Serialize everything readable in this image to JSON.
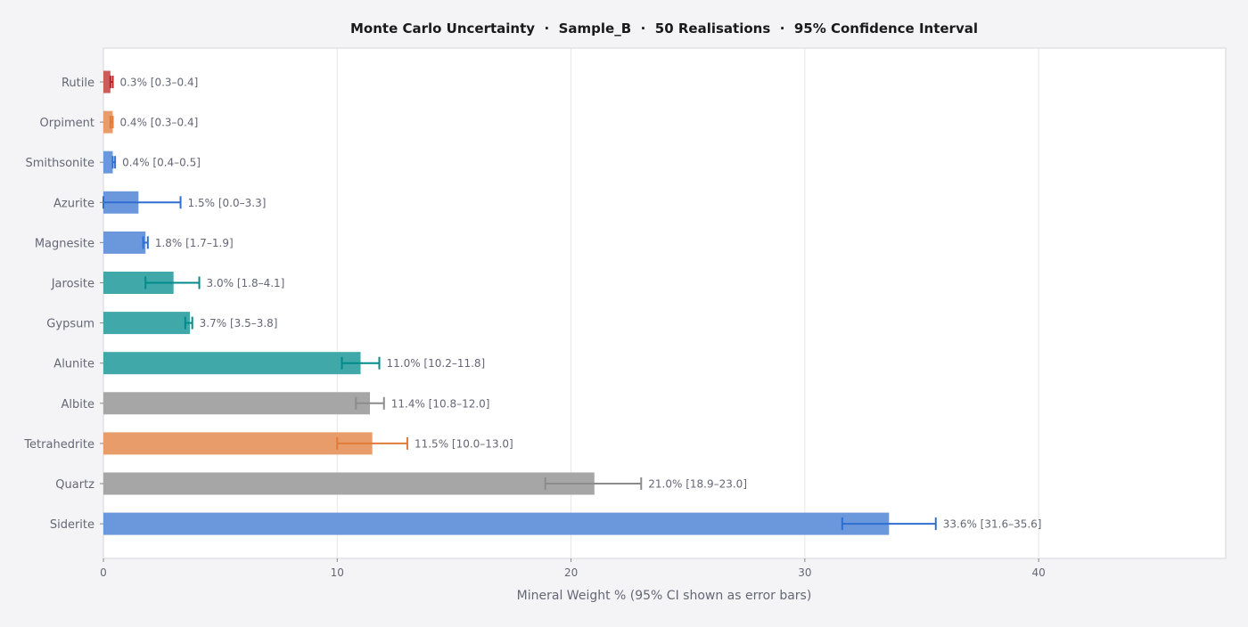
{
  "chart_data": {
    "type": "bar",
    "orientation": "horizontal",
    "title": "Monte Carlo Uncertainty  ·  Sample_B  ·  50 Realisations  ·  95% Confidence Interval",
    "xlabel": "Mineral Weight % (95% CI shown as error bars)",
    "ylabel": "",
    "xlim": [
      0,
      48
    ],
    "xticks": [
      0,
      10,
      20,
      30,
      40
    ],
    "grid": "vertical",
    "legend": "none",
    "series": [
      {
        "categories": [
          "Rutile",
          "Orpiment",
          "Smithsonite",
          "Azurite",
          "Magnesite",
          "Jarosite",
          "Gypsum",
          "Alunite",
          "Albite",
          "Tetrahedrite",
          "Quartz",
          "Siderite"
        ],
        "values": [
          0.3,
          0.4,
          0.4,
          1.5,
          1.8,
          3.0,
          3.7,
          11.0,
          11.4,
          11.5,
          21.0,
          33.6
        ],
        "ci_low": [
          0.3,
          0.3,
          0.4,
          0.0,
          1.7,
          1.8,
          3.5,
          10.2,
          10.8,
          10.0,
          18.9,
          31.6
        ],
        "ci_high": [
          0.4,
          0.4,
          0.5,
          3.3,
          1.9,
          4.1,
          3.8,
          11.8,
          12.0,
          13.0,
          23.0,
          35.6
        ],
        "labels": [
          "0.3%  [0.3–0.4]",
          "0.4%  [0.3–0.4]",
          "0.4%  [0.4–0.5]",
          "1.5%  [0.0–3.3]",
          "1.8%  [1.7–1.9]",
          "3.0%  [1.8–4.1]",
          "3.7%  [3.5–3.8]",
          "11.0%  [10.2–11.8]",
          "11.4%  [10.8–12.0]",
          "11.5%  [10.0–13.0]",
          "21.0%  [18.9–23.0]",
          "33.6%  [31.6–35.6]"
        ],
        "bar_colors": [
          "#cd5c5c",
          "#e89c6a",
          "#6b97dd",
          "#6b97dd",
          "#6b97dd",
          "#40a8a8",
          "#40a8a8",
          "#40a8a8",
          "#a6a6a6",
          "#e89c6a",
          "#a6a6a6",
          "#6b97dd"
        ],
        "error_colors": [
          "#b32424",
          "#e07b39",
          "#2f6fd1",
          "#2f6fd1",
          "#2f6fd1",
          "#008b8b",
          "#008b8b",
          "#008b8b",
          "#8c8c8c",
          "#e07b39",
          "#8c8c8c",
          "#2f6fd1"
        ]
      }
    ]
  }
}
